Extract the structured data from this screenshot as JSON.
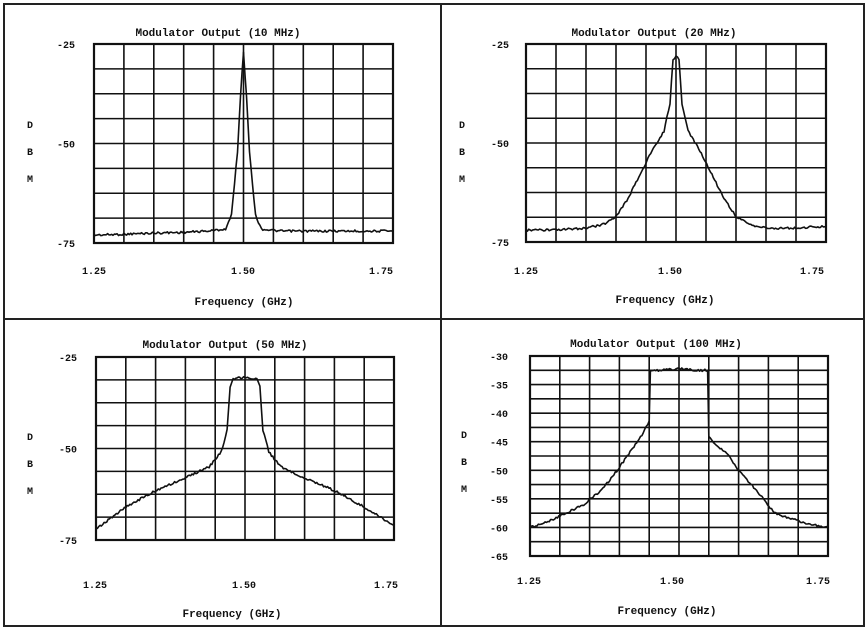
{
  "chart_data": [
    {
      "type": "line",
      "title": "Modulator Output (10 MHz)",
      "xlabel": "Frequency (GHz)",
      "ylabel": "DBM",
      "xlim": [
        1.25,
        1.75
      ],
      "ylim": [
        -75,
        -25
      ],
      "x_ticks": [
        "1.25",
        "1.50",
        "1.75"
      ],
      "y_ticks": [
        "-25",
        "-50",
        "-75"
      ],
      "grid": true,
      "series": [
        {
          "x": [
            1.25,
            1.3,
            1.35,
            1.4,
            1.44,
            1.47,
            1.48,
            1.49,
            1.495,
            1.5,
            1.505,
            1.51,
            1.52,
            1.53,
            1.56,
            1.6,
            1.65,
            1.7,
            1.75
          ],
          "y": [
            -73,
            -72.8,
            -72.5,
            -72.3,
            -72,
            -71.5,
            -68,
            -52,
            -38,
            -27,
            -38,
            -52,
            -68,
            -71.5,
            -72,
            -72,
            -72,
            -72,
            -72
          ]
        }
      ]
    },
    {
      "type": "line",
      "title": "Modulator Output (20 MHz)",
      "xlabel": "Frequency (GHz)",
      "ylabel": "DBM",
      "xlim": [
        1.25,
        1.75
      ],
      "ylim": [
        -75,
        -25
      ],
      "x_ticks": [
        "1.25",
        "1.50",
        "1.75"
      ],
      "y_ticks": [
        "-25",
        "-50",
        "-75"
      ],
      "grid": true,
      "series": [
        {
          "x": [
            1.25,
            1.3,
            1.35,
            1.38,
            1.4,
            1.42,
            1.44,
            1.46,
            1.48,
            1.49,
            1.495,
            1.5,
            1.505,
            1.51,
            1.52,
            1.54,
            1.56,
            1.58,
            1.6,
            1.62,
            1.65,
            1.7,
            1.75
          ],
          "y": [
            -72,
            -72,
            -71.5,
            -70.5,
            -68.5,
            -64,
            -58,
            -52,
            -47,
            -40,
            -29,
            -28,
            -29,
            -40,
            -47,
            -52,
            -58,
            -64,
            -68.5,
            -70.5,
            -71.5,
            -71.5,
            -71
          ]
        }
      ]
    },
    {
      "type": "line",
      "title": "Modulator Output (50 MHz)",
      "xlabel": "Frequency (GHz)",
      "ylabel": "DBM",
      "xlim": [
        1.25,
        1.75
      ],
      "ylim": [
        -75,
        -25
      ],
      "x_ticks": [
        "1.25",
        "1.50",
        "1.75"
      ],
      "y_ticks": [
        "-25",
        "-50",
        "-75"
      ],
      "grid": true,
      "series": [
        {
          "x": [
            1.25,
            1.3,
            1.35,
            1.4,
            1.44,
            1.46,
            1.47,
            1.475,
            1.48,
            1.5,
            1.52,
            1.525,
            1.53,
            1.54,
            1.56,
            1.6,
            1.65,
            1.7,
            1.75
          ],
          "y": [
            -72,
            -66,
            -61.5,
            -58,
            -55,
            -51,
            -45,
            -33,
            -31,
            -30.5,
            -31,
            -33,
            -45,
            -51,
            -55,
            -58,
            -61.5,
            -66,
            -71
          ]
        }
      ]
    },
    {
      "type": "line",
      "title": "Modulator Output (100 MHz)",
      "xlabel": "Frequency (GHz)",
      "ylabel": "DBM",
      "xlim": [
        1.25,
        1.75
      ],
      "ylim": [
        -65,
        -30
      ],
      "x_ticks": [
        "1.25",
        "1.50",
        "1.75"
      ],
      "y_ticks": [
        "-30",
        "-35",
        "-40",
        "-45",
        "-50",
        "-55",
        "-60",
        "-65"
      ],
      "grid": true,
      "series": [
        {
          "x": [
            1.25,
            1.28,
            1.31,
            1.34,
            1.37,
            1.4,
            1.42,
            1.44,
            1.45,
            1.452,
            1.47,
            1.5,
            1.53,
            1.548,
            1.55,
            1.56,
            1.58,
            1.6,
            1.63,
            1.66,
            1.69,
            1.72,
            1.75
          ],
          "y": [
            -60,
            -59,
            -57.5,
            -56,
            -53.5,
            -49.5,
            -46.5,
            -43.5,
            -41.5,
            -32.5,
            -32.5,
            -32.2,
            -32.5,
            -32.5,
            -44,
            -45.5,
            -47,
            -50,
            -53.5,
            -57.5,
            -58.5,
            -59.5,
            -60
          ]
        }
      ]
    }
  ],
  "colors": {
    "line": "#111111",
    "grid": "#111111",
    "border": "#222222",
    "background": "#ffffff"
  }
}
